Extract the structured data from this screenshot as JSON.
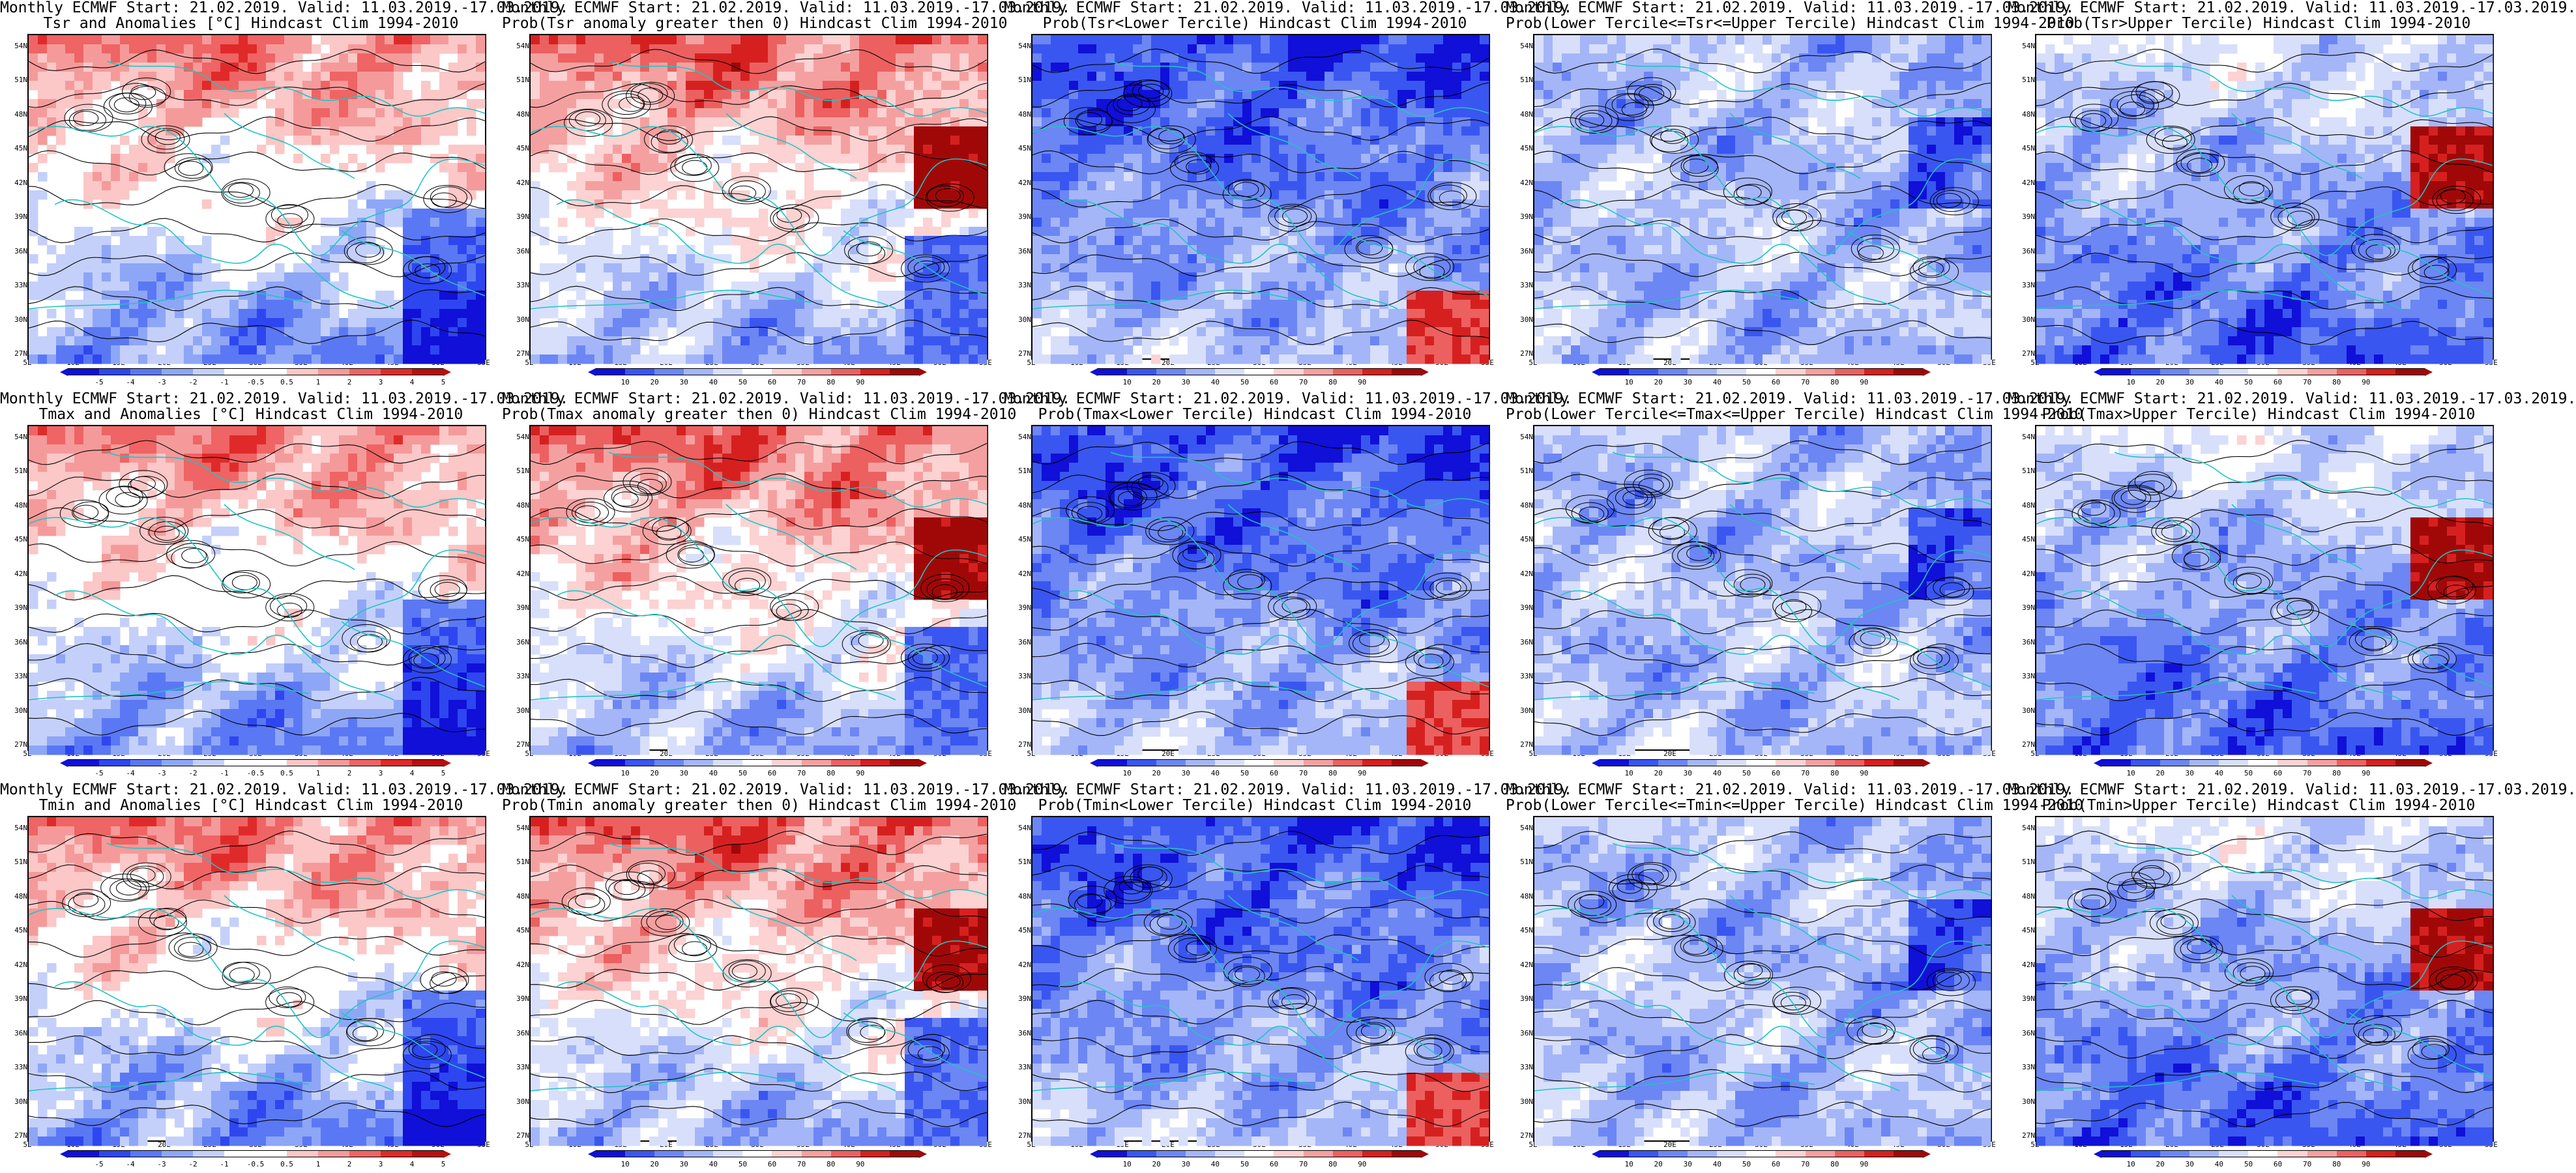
{
  "lat_labels": [
    "54N",
    "51N",
    "48N",
    "45N",
    "42N",
    "39N",
    "36N",
    "33N",
    "30N",
    "27N"
  ],
  "lon_labels": [
    "5E",
    "10E",
    "15E",
    "20E",
    "25E",
    "30E",
    "35E",
    "40E",
    "45E",
    "50E",
    "55E"
  ],
  "colors": {
    "coast": "#20c4c4",
    "contour": "#000000",
    "anom": [
      "#1010d8",
      "#2e46f0",
      "#5a78f4",
      "#8ea6f6",
      "#c4d0fa",
      "#ffffff",
      "#ffffff",
      "#fbc7c7",
      "#f59a9a",
      "#ef6464",
      "#e02a2a",
      "#b80f0f"
    ],
    "prob": [
      "#1010d8",
      "#3a56f0",
      "#6c86f4",
      "#a4b6f7",
      "#d8dffb",
      "#ffffff",
      "#fcd2d2",
      "#f5a0a0",
      "#ec6060",
      "#d62020",
      "#a00808"
    ]
  },
  "colorbars": {
    "anom_ticks": [
      "-5",
      "-4",
      "-3",
      "-2",
      "-1",
      "-0.5",
      "0.5",
      "1",
      "2",
      "3",
      "4",
      "5"
    ],
    "prob_ticks": [
      "10",
      "20",
      "30",
      "40",
      "50",
      "60",
      "70",
      "80",
      "90"
    ]
  },
  "panels": [
    {
      "t1": "Monthly ECMWF Start: 21.02.2019. Valid: 11.03.2019.-17.03.2019.",
      "t2": "Tsr and Anomalies [°C] Hindcast Clim 1994-2010",
      "kind": "anom",
      "style": "warm"
    },
    {
      "t1": "Monthly ECMWF Start: 21.02.2019. Valid: 11.03.2019.-17.03.2019.",
      "t2": "Prob(Tsr anomaly greater then 0) Hindcast Clim 1994-2010",
      "kind": "prob",
      "style": "warmhot"
    },
    {
      "t1": "Monthly ECMWF Start: 21.02.2019. Valid: 11.03.2019.-17.03.2019.",
      "t2": "Prob(Tsr<Lower Tercile) Hindcast Clim 1994-2010",
      "kind": "prob",
      "style": "blue"
    },
    {
      "t1": "Monthly ECMWF Start: 21.02.2019. Valid: 11.03.2019.-17.03.2019.",
      "t2": "Prob(Lower Tercile<=Tsr<=Upper Tercile) Hindcast Clim 1994-2010",
      "kind": "prob",
      "style": "midblue"
    },
    {
      "t1": "Monthly ECMWF Start: 21.02.2019. Valid: 11.03.2019.-17.03.2019.",
      "t2": "Prob(Tsr>Upper Tercile) Hindcast Clim 1994-2010",
      "kind": "prob",
      "style": "upper"
    },
    {
      "t1": "Monthly ECMWF Start: 21.02.2019. Valid: 11.03.2019.-17.03.2019.",
      "t2": "Tmax and Anomalies [°C] Hindcast Clim 1994-2010",
      "kind": "anom",
      "style": "warm"
    },
    {
      "t1": "Monthly ECMWF Start: 21.02.2019. Valid: 11.03.2019.-17.03.2019.",
      "t2": "Prob(Tmax anomaly greater then 0) Hindcast Clim 1994-2010",
      "kind": "prob",
      "style": "warmhot"
    },
    {
      "t1": "Monthly ECMWF Start: 21.02.2019. Valid: 11.03.2019.-17.03.2019.",
      "t2": "Prob(Tmax<Lower Tercile) Hindcast Clim 1994-2010",
      "kind": "prob",
      "style": "blue"
    },
    {
      "t1": "Monthly ECMWF Start: 21.02.2019. Valid: 11.03.2019.-17.03.2019.",
      "t2": "Prob(Lower Tercile<=Tmax<=Upper Tercile) Hindcast Clim 1994-2010",
      "kind": "prob",
      "style": "midblue"
    },
    {
      "t1": "Monthly ECMWF Start: 21.02.2019. Valid: 11.03.2019.-17.03.2019.",
      "t2": "Prob(Tmax>Upper Tercile) Hindcast Clim 1994-2010",
      "kind": "prob",
      "style": "upper"
    },
    {
      "t1": "Monthly ECMWF Start: 21.02.2019. Valid: 11.03.2019.-17.03.2019.",
      "t2": "Tmin and Anomalies [°C] Hindcast Clim 1994-2010",
      "kind": "anom",
      "style": "warm"
    },
    {
      "t1": "Monthly ECMWF Start: 21.02.2019. Valid: 11.03.2019.-17.03.2019.",
      "t2": "Prob(Tmin anomaly greater then 0) Hindcast Clim 1994-2010",
      "kind": "prob",
      "style": "warmhot"
    },
    {
      "t1": "Monthly ECMWF Start: 21.02.2019. Valid: 11.03.2019.-17.03.2019.",
      "t2": "Prob(Tmin<Lower Tercile) Hindcast Clim 1994-2010",
      "kind": "prob",
      "style": "blue"
    },
    {
      "t1": "Monthly ECMWF Start: 21.02.2019. Valid: 11.03.2019.-17.03.2019.",
      "t2": "Prob(Lower Tercile<=Tmin<=Upper Tercile) Hindcast Clim 1994-2010",
      "kind": "prob",
      "style": "midblue"
    },
    {
      "t1": "Monthly ECMWF Start: 21.02.2019. Valid: 11.03.2019.-17.03.2019.",
      "t2": "Prob(Tmin>Upper Tercile) Hindcast Clim 1994-2010",
      "kind": "prob",
      "style": "upper"
    }
  ]
}
